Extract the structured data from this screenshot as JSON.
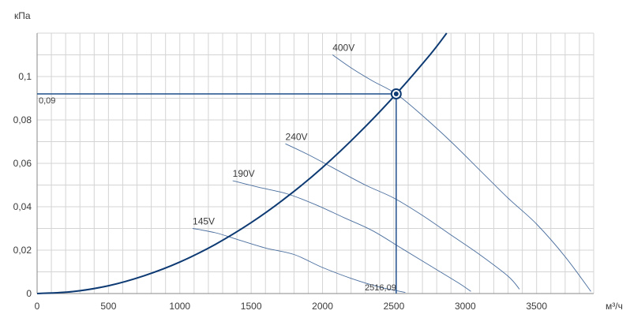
{
  "chart_data": {
    "type": "line",
    "xunit": "м³/ч",
    "yunit": "кПа",
    "xlim": [
      0,
      3900
    ],
    "ylim": [
      0,
      0.12
    ],
    "x_ticks": [
      0,
      500,
      1000,
      1500,
      2000,
      2500,
      3000,
      3500
    ],
    "x_tick_labels": [
      "0",
      "500",
      "1000",
      "1500",
      "2000",
      "2500",
      "3000",
      "3500"
    ],
    "y_ticks": [
      0,
      0.02,
      0.04,
      0.06,
      0.08,
      0.1
    ],
    "y_tick_labels": [
      "0",
      "0,02",
      "0,04",
      "0,06",
      "0,08",
      "0,1"
    ],
    "grid": true,
    "series": [
      {
        "name": "400V",
        "x": [
          2070,
          2200,
          2350,
          2516,
          2700,
          2900,
          3100,
          3300,
          3500,
          3700,
          3880
        ],
        "y": [
          0.11,
          0.104,
          0.098,
          0.092,
          0.082,
          0.07,
          0.057,
          0.044,
          0.032,
          0.017,
          0.001
        ]
      },
      {
        "name": "240V",
        "x": [
          1740,
          1900,
          2100,
          2300,
          2500,
          2700,
          2900,
          3100,
          3300,
          3380
        ],
        "y": [
          0.069,
          0.064,
          0.057,
          0.05,
          0.044,
          0.036,
          0.027,
          0.018,
          0.008,
          0.002
        ]
      },
      {
        "name": "190V",
        "x": [
          1370,
          1550,
          1750,
          1950,
          2150,
          2350,
          2550,
          2750,
          2950,
          3040
        ],
        "y": [
          0.052,
          0.049,
          0.046,
          0.041,
          0.035,
          0.029,
          0.021,
          0.013,
          0.005,
          0.001
        ]
      },
      {
        "name": "145V",
        "x": [
          1090,
          1250,
          1400,
          1600,
          1800,
          2000,
          2200,
          2400,
          2580
        ],
        "y": [
          0.03,
          0.028,
          0.025,
          0.021,
          0.018,
          0.012,
          0.007,
          0.003,
          0.0005
        ]
      }
    ],
    "system_curve": {
      "x": [
        0,
        250,
        500,
        750,
        1000,
        1250,
        1500,
        1750,
        2000,
        2250,
        2500,
        2750,
        2870
      ],
      "y": [
        0,
        0.0009,
        0.0036,
        0.0082,
        0.0145,
        0.0227,
        0.0327,
        0.0445,
        0.0581,
        0.0736,
        0.0908,
        0.1098,
        0.12
      ]
    },
    "operating_point": {
      "x": 2516.09,
      "y": 0.092
    },
    "annotations": {
      "x_value": "2516,09",
      "y_value": "0,09"
    }
  },
  "colors": {
    "system_curve": "#0d3a73",
    "fan_curves": "#4a6e9e",
    "crosshair": "#1f4f8c",
    "grid": "#d4d4d4",
    "axis": "#8a8a8a",
    "plot_bg": "#ffffff"
  }
}
